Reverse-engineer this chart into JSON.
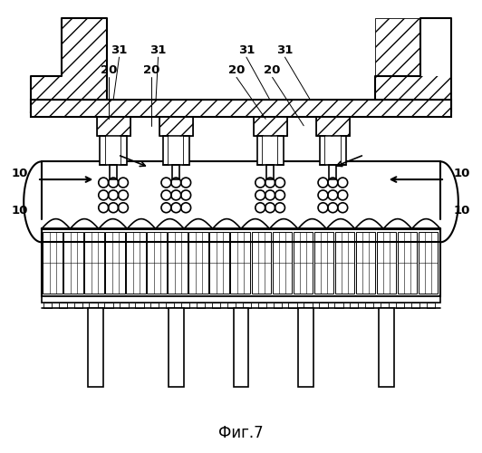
{
  "title": "Фиг.7",
  "background_color": "#ffffff",
  "line_color": "#000000",
  "fig_width": 5.32,
  "fig_height": 5.0,
  "dpi": 100
}
